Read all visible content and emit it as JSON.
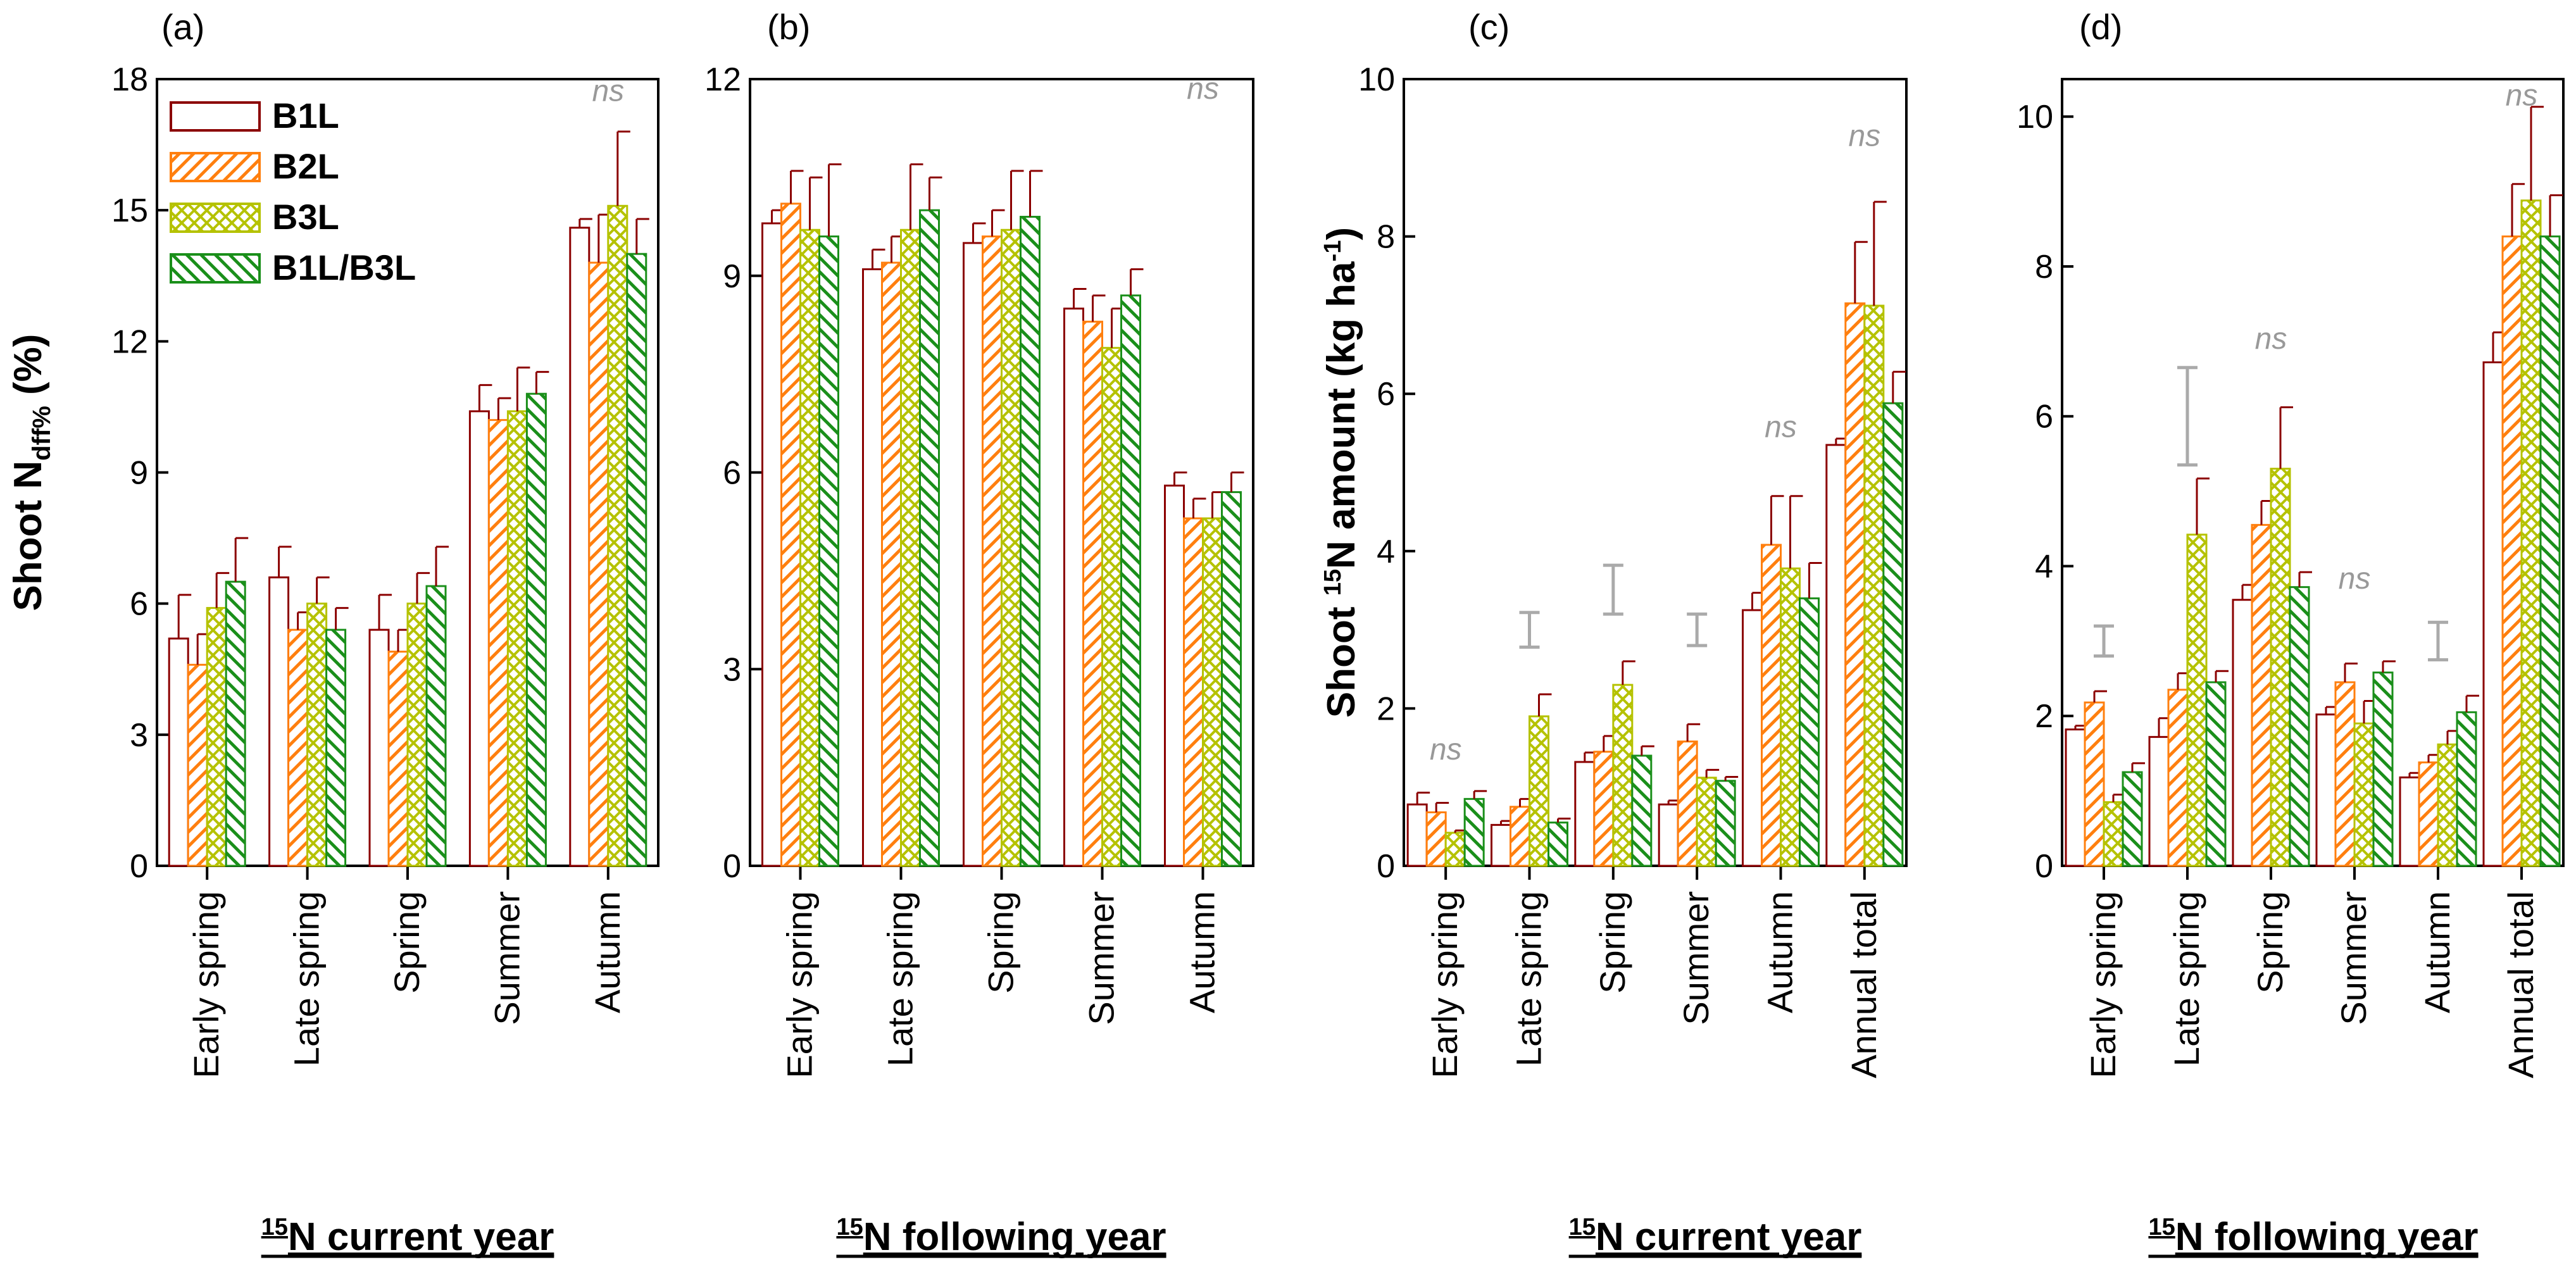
{
  "colors": {
    "B1L": "#8b0000",
    "B2L": "#ff7f0e",
    "B3L": "#b5c200",
    "B1L/B3L": "#1a8f1a",
    "lsd": "#aaaaaa",
    "ns": "#999999"
  },
  "legend": [
    "B1L",
    "B2L",
    "B3L",
    "B1L/B3L"
  ],
  "chart_data": [
    {
      "type": "bar",
      "panel": "(a)",
      "ylabel": "Shoot Ndff% (%)",
      "ylabel_parts": {
        "main": "Shoot N",
        "sub": "dff%",
        "rest": " (%)"
      },
      "xtitle": "15N current year",
      "xtitle_parts": {
        "sup": "15",
        "rest": "N current year"
      },
      "ylim": [
        0,
        18
      ],
      "yticks": [
        0,
        3,
        6,
        9,
        12,
        15,
        18
      ],
      "categories": [
        "Early spring",
        "Late spring",
        "Spring",
        "Summer",
        "Autumn"
      ],
      "series": [
        {
          "name": "B1L",
          "values": [
            5.2,
            6.6,
            5.4,
            10.4,
            14.6
          ],
          "errors": [
            1.0,
            0.7,
            0.8,
            0.6,
            0.2
          ]
        },
        {
          "name": "B2L",
          "values": [
            4.6,
            5.4,
            4.9,
            10.2,
            13.8
          ],
          "errors": [
            0.7,
            0.4,
            0.5,
            0.5,
            1.1
          ]
        },
        {
          "name": "B3L",
          "values": [
            5.9,
            6.0,
            6.0,
            10.4,
            15.1
          ],
          "errors": [
            0.8,
            0.6,
            0.7,
            1.0,
            1.7
          ]
        },
        {
          "name": "B1L/B3L",
          "values": [
            6.5,
            5.4,
            6.4,
            10.8,
            14.0
          ],
          "errors": [
            1.0,
            0.5,
            0.9,
            0.5,
            0.8
          ]
        }
      ],
      "lsd_bars": [],
      "ns_labels": [
        {
          "text": "ns",
          "category": 4,
          "y": 17.5
        }
      ]
    },
    {
      "type": "bar",
      "panel": "(b)",
      "ylabel": "",
      "xtitle": "15N following year",
      "xtitle_parts": {
        "sup": "15",
        "rest": "N following year"
      },
      "ylim": [
        0,
        12
      ],
      "yticks": [
        0,
        3,
        6,
        9,
        12
      ],
      "categories": [
        "Early spring",
        "Late spring",
        "Spring",
        "Summer",
        "Autumn"
      ],
      "series": [
        {
          "name": "B1L",
          "values": [
            9.8,
            9.1,
            9.5,
            8.5,
            5.8
          ],
          "errors": [
            0.2,
            0.3,
            0.3,
            0.3,
            0.2
          ]
        },
        {
          "name": "B2L",
          "values": [
            10.1,
            9.2,
            9.6,
            8.3,
            5.3
          ],
          "errors": [
            0.5,
            0.4,
            0.4,
            0.4,
            0.3
          ]
        },
        {
          "name": "B3L",
          "values": [
            9.7,
            9.7,
            9.7,
            7.9,
            5.3
          ],
          "errors": [
            0.8,
            1.0,
            0.9,
            0.6,
            0.4
          ]
        },
        {
          "name": "B1L/B3L",
          "values": [
            9.6,
            10.0,
            9.9,
            8.7,
            5.7
          ],
          "errors": [
            1.1,
            0.5,
            0.7,
            0.4,
            0.3
          ]
        }
      ],
      "lsd_bars": [],
      "ns_labels": [
        {
          "text": "ns",
          "category": 4,
          "y": 11.7
        }
      ]
    },
    {
      "type": "bar",
      "panel": "(c)",
      "ylabel": "Shoot 15N amount (kg ha-1)",
      "ylabel_parts": {
        "main": "Shoot ",
        "sup": "15",
        "rest": "N amount (kg ha",
        "sup2": "-1",
        "end": ")"
      },
      "xtitle": "15N current year",
      "xtitle_parts": {
        "sup": "15",
        "rest": "N current year"
      },
      "ylim": [
        0,
        10
      ],
      "yticks": [
        0,
        2,
        4,
        6,
        8,
        10
      ],
      "categories": [
        "Early spring",
        "Late spring",
        "Spring",
        "Summer",
        "Autumn",
        "Annual total"
      ],
      "series": [
        {
          "name": "B1L",
          "values": [
            0.78,
            0.52,
            1.32,
            0.78,
            3.25,
            5.35
          ],
          "errors": [
            0.15,
            0.05,
            0.12,
            0.05,
            0.22,
            0.08
          ]
        },
        {
          "name": "B2L",
          "values": [
            0.68,
            0.75,
            1.45,
            1.58,
            4.08,
            7.15
          ],
          "errors": [
            0.12,
            0.1,
            0.2,
            0.22,
            0.62,
            0.78
          ]
        },
        {
          "name": "B3L",
          "values": [
            0.42,
            1.9,
            2.3,
            1.12,
            3.78,
            7.12
          ],
          "errors": [
            0.03,
            0.28,
            0.3,
            0.1,
            0.92,
            1.32
          ]
        },
        {
          "name": "B1L/B3L",
          "values": [
            0.85,
            0.55,
            1.4,
            1.08,
            3.4,
            5.88
          ],
          "errors": [
            0.1,
            0.05,
            0.12,
            0.05,
            0.45,
            0.4
          ]
        }
      ],
      "lsd_bars": [
        {
          "category": 1,
          "low": 2.78,
          "high": 3.22
        },
        {
          "category": 2,
          "low": 3.2,
          "high": 3.82
        },
        {
          "category": 3,
          "low": 2.8,
          "high": 3.2
        }
      ],
      "ns_labels": [
        {
          "text": "ns",
          "category": 0,
          "y": 1.35
        },
        {
          "text": "ns",
          "category": 4,
          "y": 5.45
        },
        {
          "text": "ns",
          "category": 5,
          "y": 9.15
        }
      ]
    },
    {
      "type": "bar",
      "panel": "(d)",
      "ylabel": "",
      "xtitle": "15N following year",
      "xtitle_parts": {
        "sup": "15",
        "rest": "N following year"
      },
      "ylim": [
        0,
        10.5
      ],
      "yticks": [
        0,
        2,
        4,
        6,
        8,
        10
      ],
      "categories": [
        "Early spring",
        "Late spring",
        "Spring",
        "Summer",
        "Autumn",
        "Annual total"
      ],
      "series": [
        {
          "name": "B1L",
          "values": [
            1.82,
            1.72,
            3.55,
            2.02,
            1.18,
            6.72
          ],
          "errors": [
            0.05,
            0.25,
            0.2,
            0.1,
            0.06,
            0.4
          ]
        },
        {
          "name": "B2L",
          "values": [
            2.18,
            2.35,
            4.55,
            2.45,
            1.38,
            8.4
          ],
          "errors": [
            0.15,
            0.22,
            0.32,
            0.25,
            0.1,
            0.7
          ]
        },
        {
          "name": "B3L",
          "values": [
            0.85,
            4.42,
            5.3,
            1.9,
            1.62,
            8.88
          ],
          "errors": [
            0.1,
            0.75,
            0.82,
            0.3,
            0.18,
            1.25
          ]
        },
        {
          "name": "B1L/B3L",
          "values": [
            1.25,
            2.45,
            3.72,
            2.58,
            2.05,
            8.4
          ],
          "errors": [
            0.12,
            0.15,
            0.2,
            0.15,
            0.22,
            0.55
          ]
        }
      ],
      "lsd_bars": [
        {
          "category": 0,
          "low": 2.8,
          "high": 3.2
        },
        {
          "category": 1,
          "low": 5.35,
          "high": 6.65
        },
        {
          "category": 4,
          "low": 2.75,
          "high": 3.25
        }
      ],
      "ns_labels": [
        {
          "text": "ns",
          "category": 2,
          "y": 6.9
        },
        {
          "text": "ns",
          "category": 3,
          "y": 3.7
        },
        {
          "text": "ns",
          "category": 5,
          "y": 10.15
        }
      ]
    }
  ]
}
